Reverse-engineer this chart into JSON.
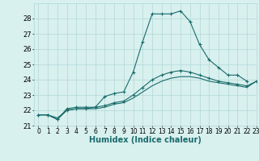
{
  "xlabel": "Humidex (Indice chaleur)",
  "x": [
    0,
    1,
    2,
    3,
    4,
    5,
    6,
    7,
    8,
    9,
    10,
    11,
    12,
    13,
    14,
    15,
    16,
    17,
    18,
    19,
    20,
    21,
    22,
    23
  ],
  "line1": [
    21.7,
    21.7,
    21.4,
    22.1,
    22.2,
    22.2,
    22.2,
    22.9,
    23.1,
    23.2,
    24.5,
    26.5,
    28.3,
    28.3,
    28.3,
    28.5,
    27.8,
    26.3,
    25.3,
    24.8,
    24.3,
    24.3,
    23.9,
    null
  ],
  "line2": [
    21.7,
    21.7,
    21.4,
    22.0,
    22.1,
    22.1,
    22.2,
    22.3,
    22.5,
    22.6,
    23.0,
    23.5,
    24.0,
    24.3,
    24.5,
    24.6,
    24.5,
    24.3,
    24.1,
    23.9,
    23.8,
    23.7,
    23.6,
    23.9
  ],
  "line3": [
    21.7,
    21.7,
    21.5,
    22.0,
    22.1,
    22.1,
    22.1,
    22.2,
    22.4,
    22.5,
    22.8,
    23.2,
    23.6,
    23.9,
    24.1,
    24.2,
    24.2,
    24.1,
    23.9,
    23.8,
    23.7,
    23.6,
    23.5,
    23.9
  ],
  "ylim": [
    21,
    29
  ],
  "xlim": [
    -0.5,
    23
  ],
  "bg_color": "#d8f0ee",
  "line_color": "#1a6b6b",
  "grid_color": "#b0d8d8",
  "tick_fontsize": 6,
  "label_fontsize": 7
}
